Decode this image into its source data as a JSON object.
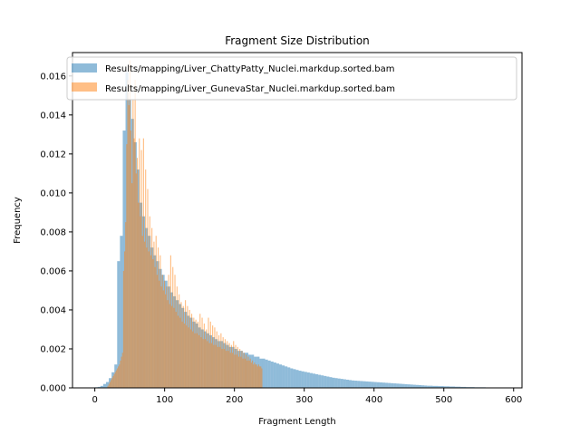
{
  "chart_data": {
    "type": "bar",
    "title": "Fragment Size Distribution",
    "xlabel": "Fragment Length",
    "ylabel": "Frequency",
    "xlim": [
      -32,
      612
    ],
    "ylim": [
      0,
      0.0172
    ],
    "xticks": [
      0,
      100,
      200,
      300,
      400,
      500,
      600
    ],
    "xtick_labels": [
      "0",
      "100",
      "200",
      "300",
      "400",
      "500",
      "600"
    ],
    "yticks": [
      0.0,
      0.002,
      0.004,
      0.006,
      0.008,
      0.01,
      0.012,
      0.014,
      0.016
    ],
    "ytick_labels": [
      "0.000",
      "0.002",
      "0.004",
      "0.006",
      "0.008",
      "0.010",
      "0.012",
      "0.014",
      "0.016"
    ],
    "grid": false,
    "legend_position": "top-right",
    "series": [
      {
        "name": "Results/mapping/Liver_ChattyPatty_Nuclei.markdup.sorted.bam",
        "color": "#1f77b4",
        "alpha": 0.5,
        "bin_start": 0,
        "bin_width": 4,
        "values": [
          3e-05,
          5e-05,
          0.0001,
          0.0002,
          0.0003,
          0.0005,
          0.0008,
          0.0012,
          0.0065,
          0.0078,
          0.0132,
          0.0162,
          0.0148,
          0.0138,
          0.0126,
          0.0112,
          0.0095,
          0.0088,
          0.0082,
          0.0078,
          0.0072,
          0.0068,
          0.0065,
          0.0061,
          0.0058,
          0.0055,
          0.0052,
          0.0049,
          0.0047,
          0.0045,
          0.0043,
          0.0041,
          0.0039,
          0.0037,
          0.0036,
          0.0034,
          0.0033,
          0.0031,
          0.003,
          0.0029,
          0.0028,
          0.0027,
          0.0026,
          0.0025,
          0.0024,
          0.0024,
          0.0023,
          0.0022,
          0.0021,
          0.0021,
          0.002,
          0.0019,
          0.0019,
          0.0018,
          0.0018,
          0.0017,
          0.0017,
          0.0016,
          0.0016,
          0.0015,
          0.0015,
          0.00145,
          0.0014,
          0.00135,
          0.0013,
          0.00125,
          0.0012,
          0.00115,
          0.0011,
          0.00105,
          0.001,
          0.00096,
          0.00092,
          0.00088,
          0.00085,
          0.00082,
          0.00079,
          0.00076,
          0.00073,
          0.0007,
          0.00067,
          0.00064,
          0.00061,
          0.00058,
          0.00055,
          0.00052,
          0.0005,
          0.00048,
          0.00046,
          0.00044,
          0.00042,
          0.0004,
          0.00038,
          0.00037,
          0.00036,
          0.00035,
          0.00034,
          0.00033,
          0.00032,
          0.00031,
          0.0003,
          0.00029,
          0.00028,
          0.00027,
          0.00026,
          0.00025,
          0.00024,
          0.00023,
          0.00022,
          0.00021,
          0.0002,
          0.00019,
          0.00018,
          0.00017,
          0.00016,
          0.00015,
          0.00014,
          0.00013,
          0.00012,
          0.00011,
          0.00011,
          0.0001,
          0.0001,
          9e-05,
          9e-05,
          8e-05,
          8e-05,
          7e-05,
          7e-05,
          6e-05,
          6e-05,
          5e-05,
          5e-05,
          4e-05,
          4e-05,
          4e-05,
          3e-05,
          3e-05,
          3e-05,
          3e-05,
          2e-05,
          2e-05,
          2e-05,
          2e-05,
          2e-05,
          1e-05
        ]
      },
      {
        "name": "Results/mapping/Liver_GunevaStar_Nuclei.markdup.sorted.bam",
        "color": "#ff7f0e",
        "alpha": 0.5,
        "bin_start": 18,
        "bin_width": 1.5,
        "values": [
          0.0001,
          0.0002,
          0.0003,
          0.0004,
          0.0005,
          0.0006,
          0.0007,
          0.0008,
          0.0009,
          0.001,
          0.0011,
          0.0012,
          0.0014,
          0.0016,
          0.0018,
          0.006,
          0.007,
          0.0085,
          0.0125,
          0.0158,
          0.0145,
          0.0168,
          0.0132,
          0.0105,
          0.0148,
          0.0128,
          0.0158,
          0.011,
          0.0118,
          0.0095,
          0.0128,
          0.0088,
          0.0122,
          0.0078,
          0.0128,
          0.0075,
          0.0112,
          0.0072,
          0.0102,
          0.007,
          0.0088,
          0.0068,
          0.0082,
          0.0066,
          0.0075,
          0.0062,
          0.0078,
          0.0058,
          0.0072,
          0.0055,
          0.0068,
          0.0052,
          0.0058,
          0.005,
          0.0055,
          0.0048,
          0.0052,
          0.0045,
          0.0058,
          0.0043,
          0.0068,
          0.0042,
          0.0062,
          0.0041,
          0.0058,
          0.0039,
          0.0052,
          0.0037,
          0.0048,
          0.0036,
          0.0044,
          0.0034,
          0.0042,
          0.0033,
          0.0045,
          0.0032,
          0.0042,
          0.0031,
          0.004,
          0.003,
          0.0038,
          0.0029,
          0.0036,
          0.0028,
          0.0035,
          0.0028,
          0.0034,
          0.0027,
          0.0038,
          0.0026,
          0.0036,
          0.0025,
          0.0033,
          0.0025,
          0.003,
          0.0024,
          0.0036,
          0.0023,
          0.0034,
          0.0023,
          0.0032,
          0.0022,
          0.0031,
          0.0022,
          0.0029,
          0.0021,
          0.0027,
          0.0021,
          0.0028,
          0.002,
          0.0026,
          0.002,
          0.0025,
          0.0019,
          0.0024,
          0.0019,
          0.0023,
          0.0018,
          0.0022,
          0.0018,
          0.0024,
          0.0017,
          0.0022,
          0.0017,
          0.0021,
          0.0016,
          0.002,
          0.0016,
          0.0019,
          0.0015,
          0.0018,
          0.0015,
          0.0017,
          0.0014,
          0.0016,
          0.0014,
          0.0015,
          0.0013,
          0.0014,
          0.0012,
          0.0013,
          0.0012,
          0.0012,
          0.0011,
          0.0012,
          0.0011,
          0.0011,
          0.001
        ]
      }
    ]
  }
}
